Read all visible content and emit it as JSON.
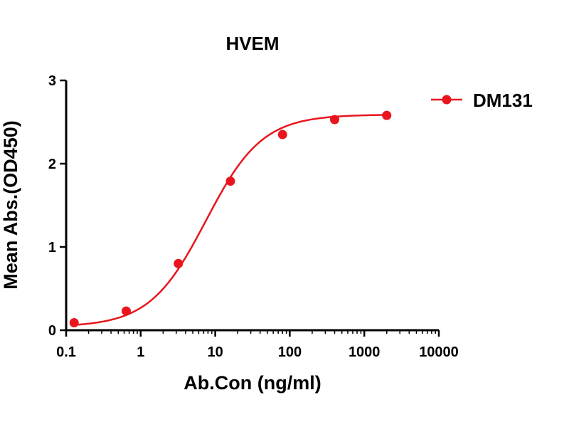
{
  "chart_data": {
    "type": "scatter",
    "title": "HVEM",
    "xlabel": "Ab.Con (ng/ml)",
    "ylabel": "Mean Abs.(OD450)",
    "xscale": "log",
    "xlim": [
      0.1,
      10000
    ],
    "ylim": [
      0,
      3
    ],
    "grid": false,
    "legend_position": "top-right",
    "x_ticks": [
      0.1,
      1,
      10,
      100,
      1000,
      10000
    ],
    "x_tick_labels": [
      "0.1",
      "1",
      "10",
      "100",
      "1000",
      "10000"
    ],
    "y_ticks": [
      0,
      1,
      2,
      3
    ],
    "y_tick_labels": [
      "0",
      "1",
      "2",
      "3"
    ],
    "series": [
      {
        "name": "DM131",
        "color": "#e8161c",
        "marker": "circle",
        "fit": "sigmoidal",
        "x": [
          0.128,
          0.64,
          3.2,
          16,
          80,
          400,
          2000
        ],
        "y": [
          0.09,
          0.23,
          0.8,
          1.79,
          2.35,
          2.53,
          2.58
        ]
      }
    ]
  }
}
